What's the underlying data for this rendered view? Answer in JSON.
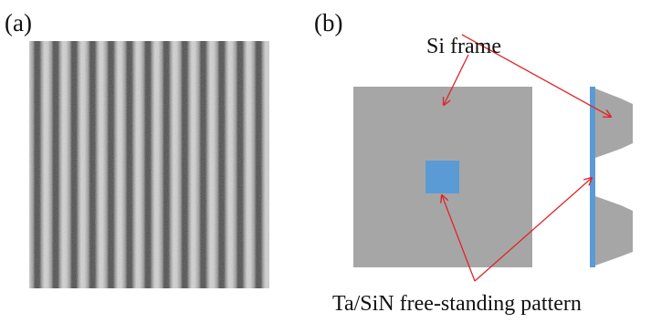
{
  "panels": {
    "a": {
      "label": "(a)"
    },
    "b": {
      "label": "(b)",
      "annotations": [
        "Si frame",
        "Ta/SiN free-standing pattern"
      ]
    }
  }
}
